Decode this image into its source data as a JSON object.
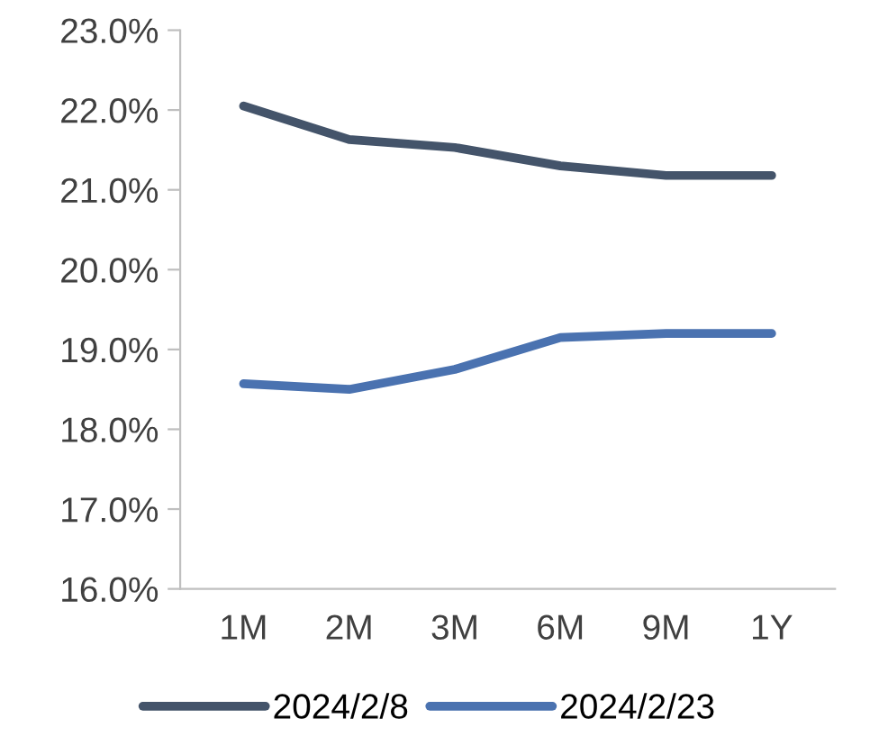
{
  "chart_data": {
    "type": "line",
    "categories": [
      "1M",
      "2M",
      "3M",
      "6M",
      "9M",
      "1Y"
    ],
    "series": [
      {
        "name": "2024/2/8",
        "color": "#44546a",
        "values": [
          22.05,
          21.63,
          21.53,
          21.3,
          21.18,
          21.18
        ]
      },
      {
        "name": "2024/2/23",
        "color": "#4a72b0",
        "values": [
          18.57,
          18.5,
          18.75,
          19.15,
          19.2,
          19.2
        ]
      }
    ],
    "ylim": [
      16,
      23
    ],
    "yticks": [
      {
        "value": 16,
        "label": "16.0%"
      },
      {
        "value": 17,
        "label": "17.0%"
      },
      {
        "value": 18,
        "label": "18.0%"
      },
      {
        "value": 19,
        "label": "19.0%"
      },
      {
        "value": 20,
        "label": "20.0%"
      },
      {
        "value": 21,
        "label": "21.0%"
      },
      {
        "value": 22,
        "label": "22.0%"
      },
      {
        "value": 23,
        "label": "23.0%"
      }
    ],
    "grid": false,
    "legend": "bottom",
    "marker": "none",
    "line_style": "solid"
  }
}
